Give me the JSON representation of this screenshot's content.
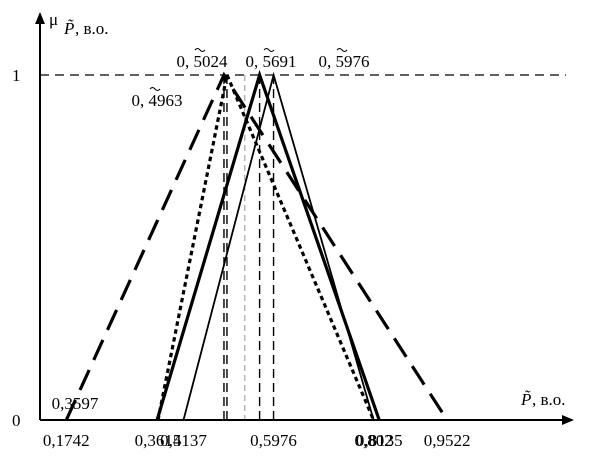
{
  "chart_data": {
    "type": "line",
    "y_axis": {
      "symbol": "μ",
      "subscript_var": "P̃",
      "unit_text": ", в.о.",
      "ticks": [
        {
          "value": 0,
          "label": "0"
        },
        {
          "value": 1,
          "label": "1"
        }
      ]
    },
    "x_axis": {
      "symbol": "P̃",
      "unit_text": ", в.о.",
      "tick_labels": [
        {
          "value": 0.1742,
          "label": "0,1742"
        },
        {
          "value": 0.3615,
          "label": "0,3615"
        },
        {
          "value": 0.4137,
          "label": "0,4137"
        },
        {
          "value": 0.5976,
          "label": "0,5976"
        },
        {
          "value": 0.802,
          "label": "0,802"
        },
        {
          "value": 0.8135,
          "label": "0,8135"
        },
        {
          "value": 0.9522,
          "label": "0,9522"
        }
      ],
      "inline_labels": [
        {
          "value": 0.3597,
          "label": "0,3597"
        }
      ]
    },
    "peak_labels": [
      {
        "value": 0.4963,
        "digits": "0, 4963"
      },
      {
        "value": 0.5024,
        "digits": "0, 5024"
      },
      {
        "value": 0.5691,
        "digits": "0, 5691"
      },
      {
        "value": 0.5976,
        "digits": "0, 5976"
      }
    ],
    "series": [
      {
        "style": "long-dash",
        "points": [
          [
            0.1742,
            0
          ],
          [
            0.4963,
            1
          ],
          [
            0.9522,
            0
          ]
        ]
      },
      {
        "style": "dotted",
        "points": [
          [
            0.3615,
            0
          ],
          [
            0.5024,
            1
          ],
          [
            0.802,
            0
          ]
        ]
      },
      {
        "style": "solid-thick",
        "points": [
          [
            0.3597,
            0
          ],
          [
            0.5691,
            1
          ],
          [
            0.8135,
            0
          ]
        ]
      },
      {
        "style": "solid",
        "points": [
          [
            0.4137,
            0
          ],
          [
            0.5976,
            1
          ],
          [
            0.802,
            0
          ]
        ]
      }
    ],
    "guide_lines": [
      {
        "style": "dashed-black",
        "x": 0.4963
      },
      {
        "style": "dashed-black",
        "x": 0.5024
      },
      {
        "style": "dashed-black",
        "x": 0.5691
      },
      {
        "style": "dashed-black",
        "x": 0.5976
      },
      {
        "style": "dashed-gray",
        "x": 0.5387
      },
      {
        "style": "dashed-horizontal",
        "y": 1
      }
    ],
    "ylim": [
      0,
      1
    ],
    "xlim": [
      0.1742,
      0.9522
    ],
    "grid": false,
    "legend": "none"
  }
}
